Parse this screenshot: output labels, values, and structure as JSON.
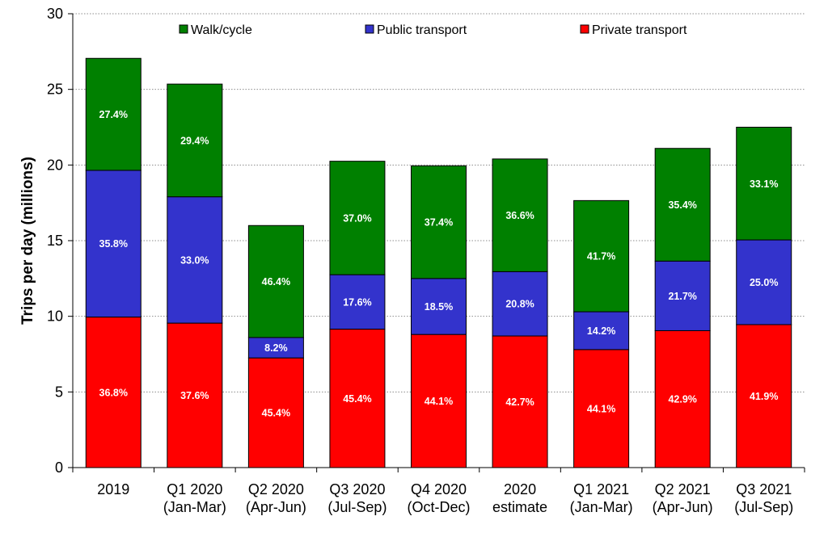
{
  "chart_data": {
    "type": "bar",
    "stacked": true,
    "title": "",
    "xlabel": "",
    "ylabel": "Trips per day (millions)",
    "ylim": [
      0,
      30
    ],
    "yticks": [
      0,
      5,
      10,
      15,
      20,
      25,
      30
    ],
    "grid": "horizontal dotted",
    "legend_position": "top",
    "categories": [
      [
        "2019"
      ],
      [
        "Q1 2020",
        "(Jan-Mar)"
      ],
      [
        "Q2 2020",
        "(Apr-Jun)"
      ],
      [
        "Q3 2020",
        "(Jul-Sep)"
      ],
      [
        "Q4 2020",
        "(Oct-Dec)"
      ],
      [
        "2020",
        "estimate"
      ],
      [
        "Q1 2021",
        "(Jan-Mar)"
      ],
      [
        "Q2 2021",
        "(Apr-Jun)"
      ],
      [
        "Q3 2021",
        "(Jul-Sep)"
      ]
    ],
    "series": [
      {
        "name": "Private transport",
        "color": "#ff0000",
        "values": [
          9.95,
          9.55,
          7.25,
          9.15,
          8.8,
          8.7,
          7.8,
          9.05,
          9.45
        ],
        "labels": [
          "36.8%",
          "37.6%",
          "45.4%",
          "45.4%",
          "44.1%",
          "42.7%",
          "44.1%",
          "42.9%",
          "41.9%"
        ]
      },
      {
        "name": "Public transport",
        "color": "#3333cc",
        "values": [
          9.7,
          8.35,
          1.35,
          3.6,
          3.7,
          4.25,
          2.5,
          4.6,
          5.6
        ],
        "labels": [
          "35.8%",
          "33.0%",
          "8.2%",
          "17.6%",
          "18.5%",
          "20.8%",
          "14.2%",
          "21.7%",
          "25.0%"
        ]
      },
      {
        "name": "Walk/cycle",
        "color": "#008000",
        "values": [
          7.4,
          7.45,
          7.4,
          7.5,
          7.45,
          7.45,
          7.35,
          7.45,
          7.45
        ],
        "labels": [
          "27.4%",
          "29.4%",
          "46.4%",
          "37.0%",
          "37.4%",
          "36.6%",
          "41.7%",
          "35.4%",
          "33.1%"
        ]
      }
    ],
    "legend_order": [
      "Walk/cycle",
      "Public transport",
      "Private transport"
    ]
  }
}
